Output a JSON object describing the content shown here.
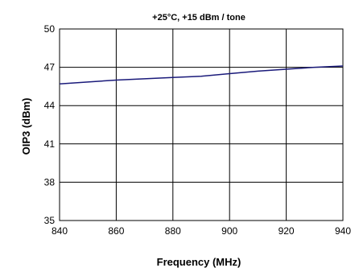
{
  "chart_data": {
    "type": "line",
    "title": "+25°C, +15 dBm / tone",
    "xlabel": "Frequency (MHz)",
    "ylabel": "OIP3 (dBm)",
    "xlim": [
      840,
      940
    ],
    "ylim": [
      35,
      50
    ],
    "xticks": [
      840,
      860,
      880,
      900,
      920,
      940
    ],
    "yticks": [
      35,
      38,
      41,
      44,
      47,
      50
    ],
    "grid": true,
    "line_color": "#1a1a7a",
    "series": [
      {
        "x": [
          840,
          850,
          860,
          870,
          880,
          890,
          900,
          910,
          920,
          930,
          940
        ],
        "y": [
          45.7,
          45.85,
          46.0,
          46.1,
          46.2,
          46.3,
          46.5,
          46.7,
          46.85,
          47.0,
          47.1
        ]
      }
    ]
  }
}
